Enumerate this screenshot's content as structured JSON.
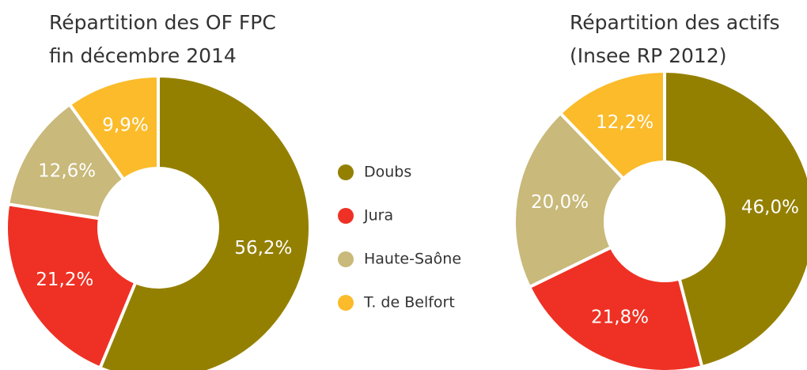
{
  "chart_data": [
    {
      "type": "donut",
      "title": [
        "Répartition des OF FPC",
        "fin décembre 2014"
      ],
      "categories": [
        "Doubs",
        "Jura",
        "Haute-Saône",
        "T. de Belfort"
      ],
      "colors": [
        "#948000",
        "#ee3124",
        "#c9b97a",
        "#fbbb2a"
      ],
      "values": [
        56.2,
        21.2,
        12.6,
        9.9
      ],
      "value_labels": [
        "56,2%",
        "21,2%",
        "12,6%",
        "9,9%"
      ]
    },
    {
      "type": "donut",
      "title": [
        "Répartition des actifs",
        "(Insee RP 2012)"
      ],
      "categories": [
        "Doubs",
        "Jura",
        "Haute-Saône",
        "T. de Belfort"
      ],
      "colors": [
        "#948000",
        "#ee3124",
        "#c9b97a",
        "#fbbb2a"
      ],
      "values": [
        46.0,
        21.8,
        20.0,
        12.2
      ],
      "value_labels": [
        "46,0%",
        "21,8%",
        "20,0%",
        "12,2%"
      ]
    }
  ]
}
